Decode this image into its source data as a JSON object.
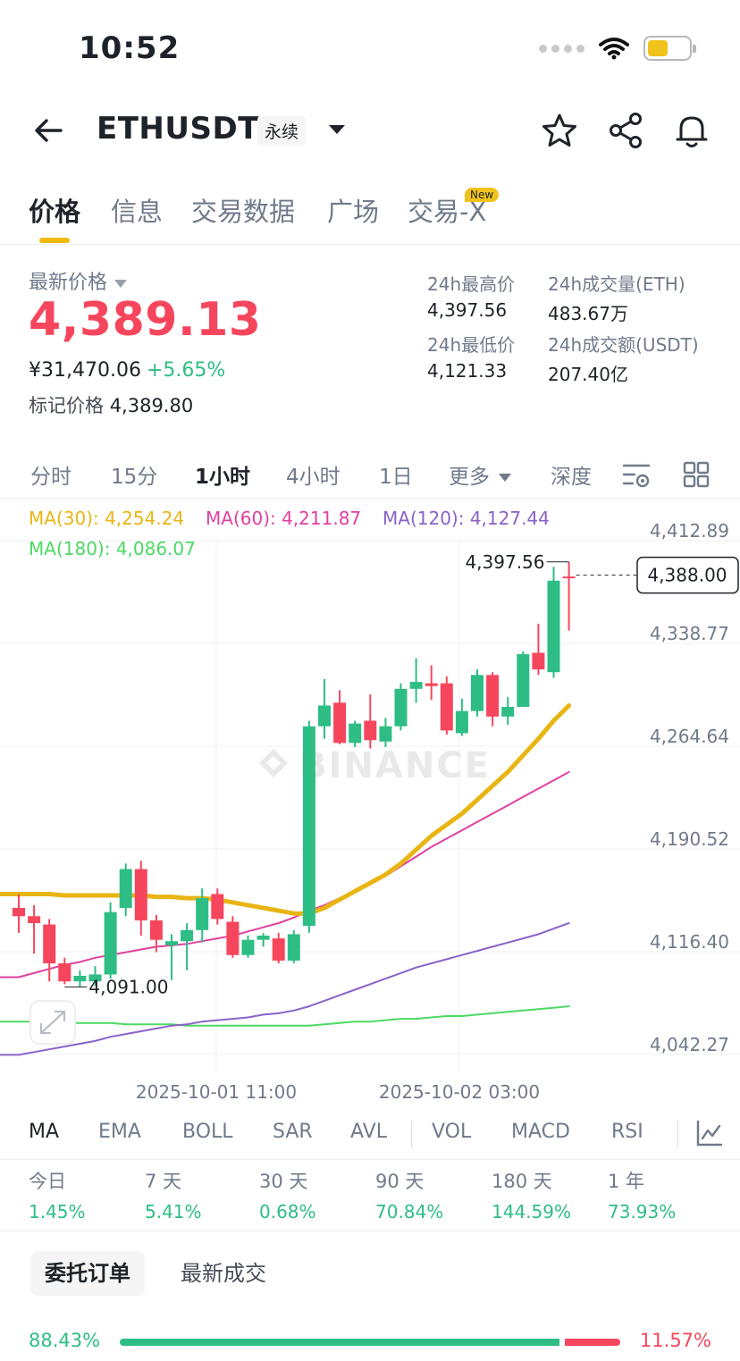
{
  "status_bar": {
    "time": "10:52"
  },
  "header": {
    "symbol": "ETHUSDT",
    "contract_type": "永续",
    "icons": [
      "back-arrow-icon",
      "star-icon",
      "share-icon",
      "bell-icon"
    ]
  },
  "tabs": [
    {
      "label": "价格",
      "active": true
    },
    {
      "label": "信息",
      "active": false
    },
    {
      "label": "交易数据",
      "active": false
    },
    {
      "label": "广场",
      "active": false
    },
    {
      "label": "交易-X",
      "active": false,
      "badge": "New"
    }
  ],
  "price": {
    "latest_label": "最新价格",
    "last_price": "4,389.13",
    "cny_price": "¥31,470.06",
    "change_pct": "+5.65%",
    "mark_label": "标记价格",
    "mark_price": "4,389.80"
  },
  "stats": {
    "high_label": "24h最高价",
    "high": "4,397.56",
    "low_label": "24h最低价",
    "low": "4,121.33",
    "vol_base_label": "24h成交量(ETH)",
    "vol_base": "483.67万",
    "vol_quote_label": "24h成交额(USDT)",
    "vol_quote": "207.40亿"
  },
  "intervals": [
    {
      "label": "分时",
      "active": false
    },
    {
      "label": "15分",
      "active": false
    },
    {
      "label": "1小时",
      "active": true
    },
    {
      "label": "4小时",
      "active": false
    },
    {
      "label": "1日",
      "active": false
    },
    {
      "label": "更多",
      "active": false
    },
    {
      "label": "深度",
      "active": false
    }
  ],
  "ma_legend": {
    "ma30": "MA(30): 4,254.24",
    "ma60": "MA(60): 4,211.87",
    "ma120": "MA(120): 4,127.44",
    "ma180": "MA(180): 4,086.07"
  },
  "colors": {
    "up": "#2ebd85",
    "down": "#f6465d",
    "accent": "#f0b90b",
    "ma30": "#e8b513",
    "ma60": "#e040a0",
    "ma120": "#8a62c8",
    "ma180": "#4cd964"
  },
  "chart_data": {
    "type": "candlestick",
    "interval": "1h",
    "y_ticks": [
      4412.89,
      4338.77,
      4264.64,
      4190.52,
      4116.4,
      4042.27
    ],
    "y_tick_labels": [
      "4,412.89",
      "4,338.77",
      "4,264.64",
      "4,190.52",
      "4,116.40",
      "4,042.27"
    ],
    "x_ticks": [
      "2025-10-01 11:00",
      "2025-10-02 03:00"
    ],
    "high_marker": "4,397.56",
    "low_marker": "4,091.00",
    "current_price_tag": "4,388.00",
    "watermark": "BINANCE",
    "candles": [
      {
        "o": 4148,
        "h": 4158,
        "l": 4130,
        "c": 4142
      },
      {
        "o": 4142,
        "h": 4150,
        "l": 4115,
        "c": 4137
      },
      {
        "o": 4136,
        "h": 4140,
        "l": 4095,
        "c": 4108
      },
      {
        "o": 4108,
        "h": 4112,
        "l": 4093,
        "c": 4095
      },
      {
        "o": 4095,
        "h": 4103,
        "l": 4091,
        "c": 4099
      },
      {
        "o": 4095,
        "h": 4106,
        "l": 4092,
        "c": 4100
      },
      {
        "o": 4100,
        "h": 4152,
        "l": 4097,
        "c": 4145
      },
      {
        "o": 4148,
        "h": 4180,
        "l": 4142,
        "c": 4176
      },
      {
        "o": 4176,
        "h": 4182,
        "l": 4128,
        "c": 4139
      },
      {
        "o": 4139,
        "h": 4143,
        "l": 4116,
        "c": 4125
      },
      {
        "o": 4121,
        "h": 4129,
        "l": 4096,
        "c": 4124
      },
      {
        "o": 4124,
        "h": 4137,
        "l": 4103,
        "c": 4132
      },
      {
        "o": 4132,
        "h": 4162,
        "l": 4123,
        "c": 4155
      },
      {
        "o": 4158,
        "h": 4162,
        "l": 4136,
        "c": 4140
      },
      {
        "o": 4138,
        "h": 4142,
        "l": 4112,
        "c": 4114
      },
      {
        "o": 4114,
        "h": 4128,
        "l": 4112,
        "c": 4125
      },
      {
        "o": 4125,
        "h": 4130,
        "l": 4120,
        "c": 4128
      },
      {
        "o": 4126,
        "h": 4130,
        "l": 4108,
        "c": 4110
      },
      {
        "o": 4110,
        "h": 4132,
        "l": 4108,
        "c": 4129
      },
      {
        "o": 4135,
        "h": 4283,
        "l": 4130,
        "c": 4279
      },
      {
        "o": 4279,
        "h": 4313,
        "l": 4270,
        "c": 4294
      },
      {
        "o": 4296,
        "h": 4305,
        "l": 4266,
        "c": 4267
      },
      {
        "o": 4267,
        "h": 4283,
        "l": 4264,
        "c": 4281
      },
      {
        "o": 4283,
        "h": 4302,
        "l": 4263,
        "c": 4269
      },
      {
        "o": 4268,
        "h": 4285,
        "l": 4264,
        "c": 4279
      },
      {
        "o": 4279,
        "h": 4310,
        "l": 4276,
        "c": 4306
      },
      {
        "o": 4306,
        "h": 4328,
        "l": 4296,
        "c": 4311
      },
      {
        "o": 4310,
        "h": 4323,
        "l": 4298,
        "c": 4308
      },
      {
        "o": 4310,
        "h": 4315,
        "l": 4273,
        "c": 4276
      },
      {
        "o": 4274,
        "h": 4299,
        "l": 4272,
        "c": 4290
      },
      {
        "o": 4290,
        "h": 4320,
        "l": 4286,
        "c": 4316
      },
      {
        "o": 4316,
        "h": 4318,
        "l": 4279,
        "c": 4286
      },
      {
        "o": 4286,
        "h": 4300,
        "l": 4280,
        "c": 4293
      },
      {
        "o": 4293,
        "h": 4333,
        "l": 4293,
        "c": 4331
      },
      {
        "o": 4332,
        "h": 4353,
        "l": 4316,
        "c": 4320
      },
      {
        "o": 4318,
        "h": 4394,
        "l": 4314,
        "c": 4384
      },
      {
        "o": 4387,
        "h": 4397.56,
        "l": 4348,
        "c": 4386
      }
    ],
    "ma_lines": {
      "ma30": [
        4158,
        4158,
        4158,
        4157,
        4157,
        4157,
        4157,
        4157,
        4157,
        4156,
        4156,
        4155,
        4155,
        4154,
        4152,
        4150,
        4148,
        4146,
        4144,
        4144,
        4148,
        4154,
        4160,
        4166,
        4172,
        4180,
        4190,
        4200,
        4208,
        4216,
        4226,
        4236,
        4246,
        4258,
        4270,
        4283,
        4294
      ],
      "ma60": [
        4098,
        4101,
        4104,
        4107,
        4109,
        4112,
        4114,
        4116,
        4118,
        4120,
        4121,
        4122,
        4124,
        4126,
        4128,
        4131,
        4134,
        4137,
        4141,
        4146,
        4150,
        4155,
        4160,
        4165,
        4171,
        4178,
        4185,
        4192,
        4198,
        4204,
        4210,
        4216,
        4222,
        4228,
        4234,
        4240,
        4246
      ],
      "ma120": [
        4042,
        4044,
        4046,
        4048,
        4050,
        4052,
        4055,
        4057,
        4059,
        4061,
        4063,
        4064,
        4066,
        4067,
        4068,
        4069,
        4071,
        4072,
        4074,
        4077,
        4081,
        4085,
        4089,
        4093,
        4097,
        4101,
        4105,
        4108,
        4111,
        4114,
        4117,
        4120,
        4123,
        4126,
        4129,
        4133,
        4137
      ],
      "ma180": [
        4066,
        4066,
        4066,
        4065,
        4065,
        4065,
        4065,
        4064,
        4064,
        4064,
        4064,
        4063,
        4063,
        4063,
        4063,
        4063,
        4063,
        4063,
        4063,
        4063,
        4064,
        4065,
        4066,
        4066,
        4067,
        4068,
        4068,
        4069,
        4070,
        4070,
        4071,
        4072,
        4073,
        4074,
        4075,
        4076,
        4077
      ]
    }
  },
  "indicators": [
    {
      "label": "MA",
      "active": true
    },
    {
      "label": "EMA",
      "active": false
    },
    {
      "label": "BOLL",
      "active": false
    },
    {
      "label": "SAR",
      "active": false
    },
    {
      "label": "AVL",
      "active": false
    },
    {
      "label": "VOL",
      "active": false
    },
    {
      "label": "MACD",
      "active": false
    },
    {
      "label": "RSI",
      "active": false
    }
  ],
  "performance": [
    {
      "label": "今日",
      "value": "1.45%"
    },
    {
      "label": "7 天",
      "value": "5.41%"
    },
    {
      "label": "30 天",
      "value": "0.68%"
    },
    {
      "label": "90 天",
      "value": "70.84%"
    },
    {
      "label": "180 天",
      "value": "144.59%"
    },
    {
      "label": "1 年",
      "value": "73.93%"
    }
  ],
  "order_tabs": [
    {
      "label": "委托订单",
      "active": true
    },
    {
      "label": "最新成交",
      "active": false
    }
  ],
  "order_ratio": {
    "buy_pct": "88.43%",
    "sell_pct": "11.57%",
    "buy_fraction": 0.8843
  }
}
